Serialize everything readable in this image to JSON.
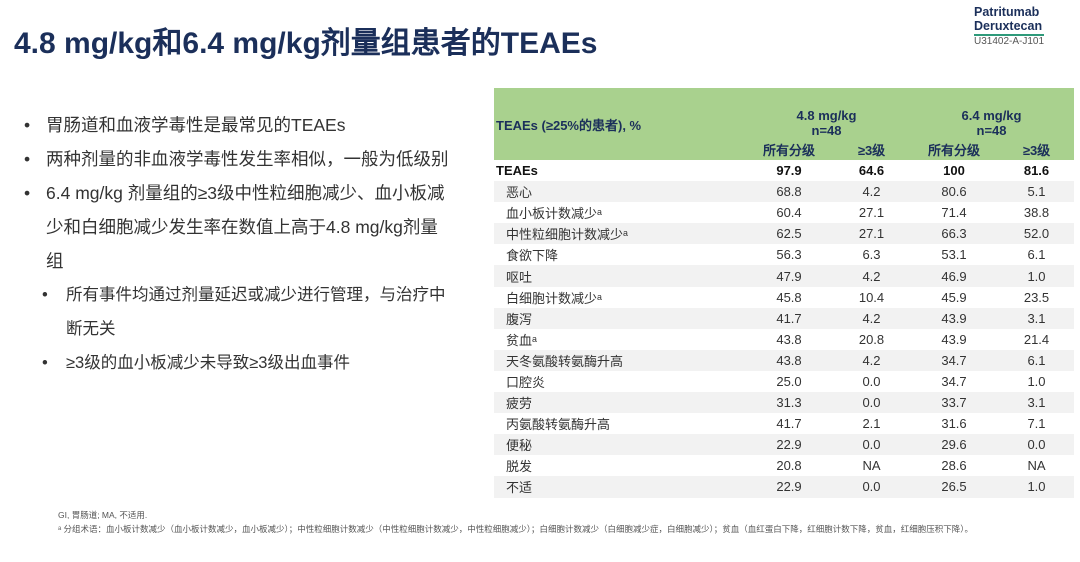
{
  "title": "4.8 mg/kg和6.4 mg/kg剂量组患者的TEAEs",
  "logo": {
    "line1": "Patritumab",
    "line2": "Deruxtecan",
    "code": "U31402-A-J101"
  },
  "bullets": [
    "胃肠道和血液学毒性是最常见的TEAEs",
    "两种剂量的非血液学毒性发生率相似，一般为低级别",
    "6.4 mg/kg 剂量组的≥3级中性粒细胞减少、血小板减少和白细胞减少发生率在数值上高于4.8 mg/kg剂量组"
  ],
  "sub_bullets": [
    "所有事件均通过剂量延迟或减少进行管理，与治疗中断无关",
    "≥3级的血小板减少未导致≥3级出血事件"
  ],
  "table": {
    "row_header": "TEAEs (≥25%的患者), %",
    "groups": [
      {
        "dose": "4.8 mg/kg",
        "n": "n=48"
      },
      {
        "dose": "6.4 mg/kg",
        "n": "n=48"
      }
    ],
    "cols": [
      "所有分级",
      "≥3级",
      "所有分级",
      "≥3级"
    ],
    "rows": [
      [
        "TEAEs",
        "97.9",
        "64.6",
        "100",
        "81.6"
      ],
      [
        "恶心",
        "68.8",
        "4.2",
        "80.6",
        "5.1"
      ],
      [
        "血小板计数减少ᵃ",
        "60.4",
        "27.1",
        "71.4",
        "38.8"
      ],
      [
        "中性粒细胞计数减少ᵃ",
        "62.5",
        "27.1",
        "66.3",
        "52.0"
      ],
      [
        "食欲下降",
        "56.3",
        "6.3",
        "53.1",
        "6.1"
      ],
      [
        "呕吐",
        "47.9",
        "4.2",
        "46.9",
        "1.0"
      ],
      [
        "白细胞计数减少ᵃ",
        "45.8",
        "10.4",
        "45.9",
        "23.5"
      ],
      [
        "腹泻",
        "41.7",
        "4.2",
        "43.9",
        "3.1"
      ],
      [
        "贫血ᵃ",
        "43.8",
        "20.8",
        "43.9",
        "21.4"
      ],
      [
        "天冬氨酸转氨酶升高",
        "43.8",
        "4.2",
        "34.7",
        "6.1"
      ],
      [
        "口腔炎",
        "25.0",
        "0.0",
        "34.7",
        "1.0"
      ],
      [
        "疲劳",
        "31.3",
        "0.0",
        "33.7",
        "3.1"
      ],
      [
        "丙氨酸转氨酶升高",
        "41.7",
        "2.1",
        "31.6",
        "7.1"
      ],
      [
        "便秘",
        "22.9",
        "0.0",
        "29.6",
        "0.0"
      ],
      [
        "脱发",
        "20.8",
        "NA",
        "28.6",
        "NA"
      ],
      [
        "不适",
        "22.9",
        "0.0",
        "26.5",
        "1.0"
      ]
    ]
  },
  "footnotes": [
    "GI, 胃肠道; MA, 不适用.",
    "ᵃ 分组术语：血小板计数减少（血小板计数减少，血小板减少）；中性粒细胞计数减少（中性粒细胞计数减少，中性粒细胞减少）；白细胞计数减少（白细胞减少症，白细胞减少）；贫血（血红蛋白下降，红细胞计数下降，贫血，红细胞压积下降）。"
  ]
}
